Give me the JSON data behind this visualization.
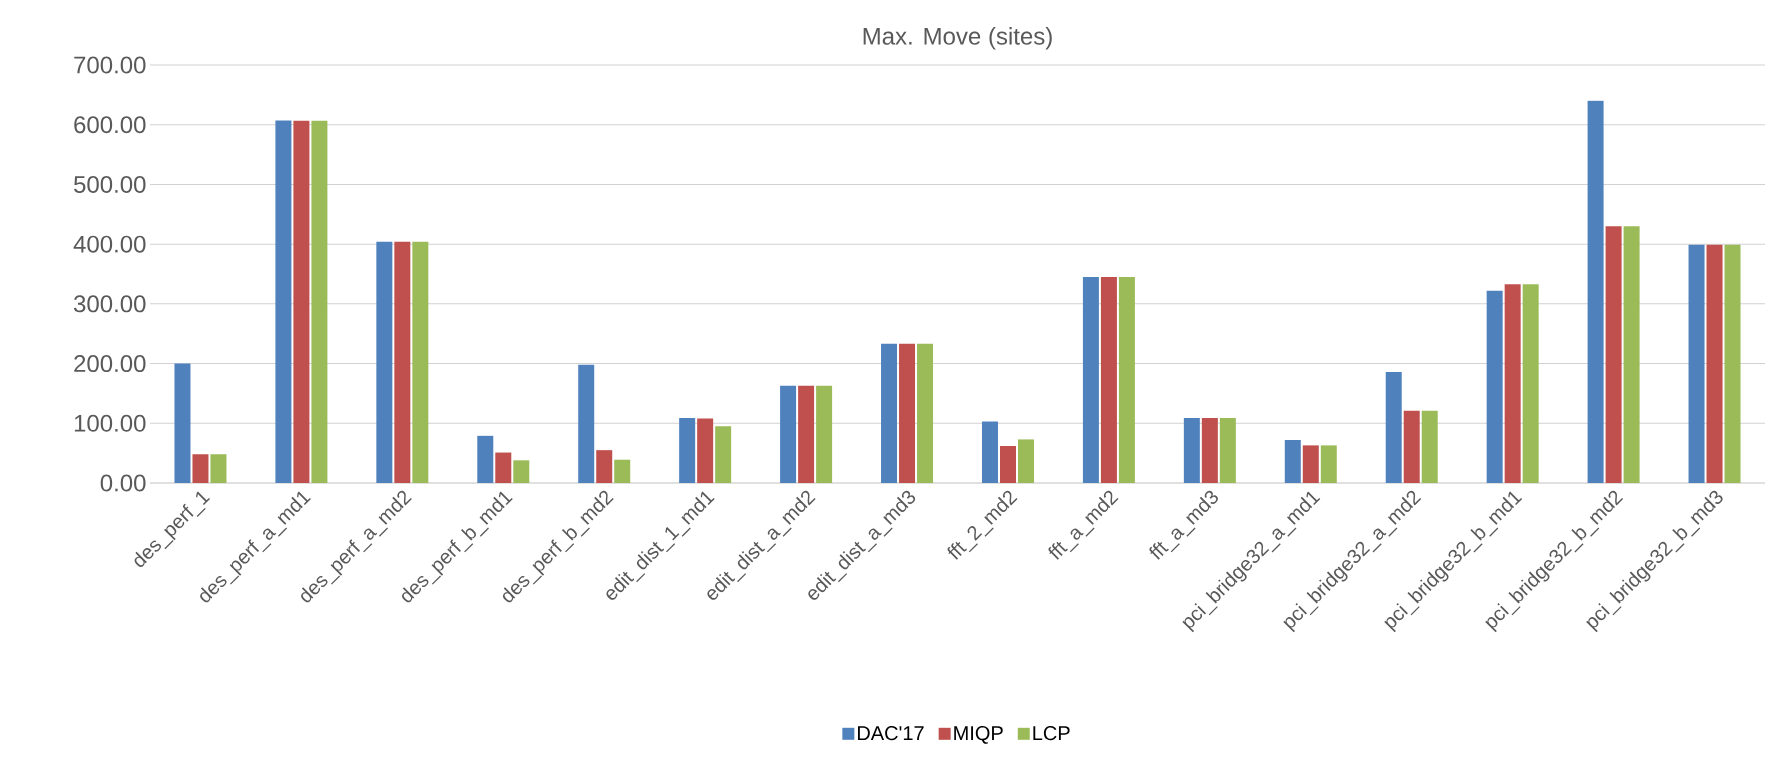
{
  "chart_data": {
    "type": "bar",
    "title": "Max. Move (sites)",
    "categories": [
      "des_perf_1",
      "des_perf_a_md1",
      "des_perf_a_md2",
      "des_perf_b_md1",
      "des_perf_b_md2",
      "edit_dist_1_md1",
      "edit_dist_a_md2",
      "edit_dist_a_md3",
      "fft_2_md2",
      "fft_a_md2",
      "fft_a_md3",
      "pci_bridge32_a_md1",
      "pci_bridge32_a_md2",
      "pci_bridge32_b_md1",
      "pci_bridge32_b_md2",
      "pci_bridge32_b_md3"
    ],
    "series": [
      {
        "name": "DAC'17",
        "color": "#4f81bd",
        "values": [
          200,
          607,
          404,
          79,
          198,
          109,
          163,
          233,
          103,
          345,
          109,
          72,
          186,
          322,
          640,
          399
        ]
      },
      {
        "name": "MIQP",
        "color": "#c0504d",
        "values": [
          48,
          607,
          404,
          51,
          55,
          108,
          163,
          233,
          62,
          345,
          109,
          63,
          121,
          333,
          430,
          399
        ]
      },
      {
        "name": "LCP",
        "color": "#9bbb59",
        "values": [
          48,
          607,
          404,
          38,
          39,
          95,
          163,
          233,
          73,
          345,
          109,
          63,
          121,
          333,
          430,
          399
        ]
      }
    ],
    "ylim": [
      0,
      700
    ],
    "yticks": [
      {
        "value": 0,
        "label": "0.00"
      },
      {
        "value": 100,
        "label": "100.00"
      },
      {
        "value": 200,
        "label": "200.00"
      },
      {
        "value": 300,
        "label": "300.00"
      },
      {
        "value": 400,
        "label": "400.00"
      },
      {
        "value": 500,
        "label": "500.00"
      },
      {
        "value": 600,
        "label": "600.00"
      },
      {
        "value": 700,
        "label": "700.00"
      }
    ],
    "grid": "y",
    "legend": "bottom"
  }
}
